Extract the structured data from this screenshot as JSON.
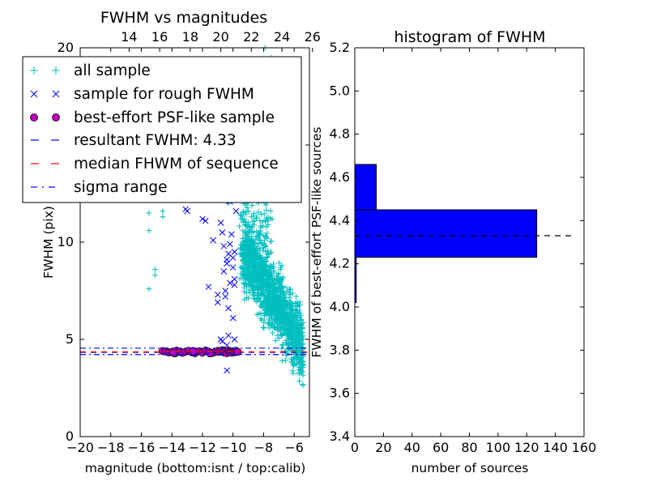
{
  "chart_data": [
    {
      "type": "scatter",
      "title": "FWHM vs magnitudes",
      "xlabel": "magnitude (bottom:isnt / top:calib)",
      "ylabel": "FWHM (pix)",
      "xlim": [
        -20,
        -5
      ],
      "ylim": [
        0,
        20
      ],
      "xticks": [
        -20,
        -18,
        -16,
        -14,
        -12,
        -10,
        -8,
        -6
      ],
      "xticklabels": [
        "−20",
        "−18",
        "−16",
        "−14",
        "−12",
        "−10",
        "−8",
        "−6"
      ],
      "yticks": [
        0,
        5,
        10,
        15,
        20
      ],
      "yticklabels": [
        "0",
        "5",
        "10",
        "15",
        "20"
      ],
      "top_axis": {
        "offset": 30.8,
        "ticks": [
          14,
          16,
          18,
          20,
          22,
          24,
          26
        ],
        "ticklabels": [
          "14",
          "16",
          "18",
          "20",
          "22",
          "24",
          "26"
        ]
      },
      "grid": false,
      "legend_position": "upper-left",
      "legend": [
        {
          "label": "all sample",
          "marker": "+",
          "color": "#00bfbf"
        },
        {
          "label": "sample for rough FWHM",
          "marker": "x",
          "color": "#0000ff"
        },
        {
          "label": "best-effort PSF-like sample",
          "marker": "o",
          "color": "#bf00bf"
        },
        {
          "label": "resultant FWHM: 4.33",
          "line": "dashed",
          "color": "#0000ff"
        },
        {
          "label": "median FHWM of sequence",
          "line": "dashed",
          "color": "#ff0000"
        },
        {
          "label": "sigma range",
          "line": "dashdot",
          "color": "#0000ff"
        }
      ],
      "series": [
        {
          "name": "all sample",
          "color": "#00bfbf",
          "values": [
            [
              -15.5,
              7.6
            ],
            [
              -15.5,
              10.6
            ],
            [
              -15.5,
              11.5
            ],
            [
              -15.1,
              8.3
            ],
            [
              -15.1,
              8.6
            ],
            [
              -14.6,
              11.3
            ],
            [
              -14.6,
              11.6
            ],
            [
              -13.6,
              12.3
            ],
            [
              -13.0,
              12.2
            ],
            [
              -11.0,
              12.6
            ],
            [
              -10.3,
              12.0
            ],
            [
              -9.7,
              12.8
            ],
            [
              -9.5,
              13.4
            ],
            [
              -9.0,
              14.2
            ],
            [
              -8.8,
              13.0
            ],
            [
              -8.5,
              13.6
            ],
            [
              -8.3,
              13.1
            ],
            [
              -7.6,
              12.8
            ],
            [
              -7.3,
              13.0
            ],
            [
              -7.0,
              13.4
            ],
            [
              -6.5,
              12.5
            ],
            [
              -6.2,
              12.3
            ],
            [
              -7.9,
              20.0
            ],
            [
              -7.5,
              19.5
            ],
            [
              -7.0,
              19.2
            ],
            [
              -8.5,
              15.5
            ],
            [
              -7.6,
              15.3
            ],
            [
              -7.2,
              15.6
            ],
            [
              -8.9,
              14.4
            ],
            [
              -7.4,
              14.8
            ]
          ]
        },
        {
          "name": "sample for rough FWHM",
          "color": "#0000ff",
          "values": [
            [
              -13.1,
              11.7
            ],
            [
              -13.0,
              11.6
            ],
            [
              -12.2,
              12.3
            ],
            [
              -12.0,
              11.2
            ],
            [
              -11.8,
              11.1
            ],
            [
              -11.6,
              7.7
            ],
            [
              -11.3,
              10.1
            ],
            [
              -11.1,
              12.5
            ],
            [
              -11.0,
              7.3
            ],
            [
              -11.0,
              6.9
            ],
            [
              -10.9,
              12.8
            ],
            [
              -10.7,
              10.5
            ],
            [
              -10.6,
              8.5
            ],
            [
              -10.5,
              7.5
            ],
            [
              -10.5,
              7.2
            ],
            [
              -10.4,
              9.1
            ],
            [
              -10.4,
              8.9
            ],
            [
              -10.3,
              9.4
            ],
            [
              -10.3,
              6.6
            ],
            [
              -10.2,
              12.1
            ],
            [
              -10.2,
              9.9
            ],
            [
              -10.2,
              7.9
            ],
            [
              -10.1,
              10.4
            ],
            [
              -10.0,
              9.2
            ],
            [
              -10.0,
              8.7
            ],
            [
              -10.0,
              6.1
            ],
            [
              -9.9,
              9.5
            ],
            [
              -9.9,
              12.9
            ],
            [
              -9.9,
              8.1
            ],
            [
              -9.8,
              11.6
            ],
            [
              -10.4,
              3.4
            ],
            [
              -10.3,
              5.2
            ],
            [
              -10.8,
              5.0
            ],
            [
              -10.7,
              4.9
            ],
            [
              -9.9,
              5.0
            ],
            [
              -9.9,
              7.8
            ],
            [
              -10.6,
              9.8
            ],
            [
              -10.8,
              11.0
            ],
            [
              -11.5,
              12.2
            ],
            [
              -10.4,
              4.7
            ]
          ]
        },
        {
          "name": "best-effort PSF-like sample",
          "color": "#bf00bf",
          "values": [
            [
              -14.6,
              4.4
            ],
            [
              -14.4,
              4.38
            ],
            [
              -14.2,
              4.33
            ],
            [
              -14.0,
              4.36
            ],
            [
              -13.8,
              4.28
            ],
            [
              -13.7,
              4.42
            ],
            [
              -13.5,
              4.35
            ],
            [
              -13.3,
              4.31
            ],
            [
              -13.1,
              4.37
            ],
            [
              -12.9,
              4.41
            ],
            [
              -12.7,
              4.34
            ],
            [
              -12.5,
              4.29
            ],
            [
              -12.4,
              4.36
            ],
            [
              -12.2,
              4.39
            ],
            [
              -12.0,
              4.32
            ],
            [
              -11.8,
              4.42
            ],
            [
              -11.6,
              4.37
            ],
            [
              -11.4,
              4.3
            ],
            [
              -11.2,
              4.34
            ],
            [
              -11.0,
              4.41
            ],
            [
              -10.9,
              4.36
            ],
            [
              -10.7,
              4.44
            ],
            [
              -10.6,
              4.33
            ],
            [
              -10.5,
              4.38
            ],
            [
              -10.4,
              4.29
            ],
            [
              -10.3,
              4.42
            ],
            [
              -10.2,
              4.35
            ],
            [
              -10.1,
              4.32
            ],
            [
              -10.0,
              4.39
            ],
            [
              -9.9,
              4.34
            ],
            [
              -9.8,
              4.41
            ],
            [
              -9.7,
              4.36
            ],
            [
              -13.9,
              4.31
            ],
            [
              -12.6,
              4.4
            ],
            [
              -11.5,
              4.28
            ]
          ]
        }
      ],
      "reference_lines": [
        {
          "name": "resultant FWHM",
          "y": 4.33,
          "color": "#0000ff",
          "style": "dashed"
        },
        {
          "name": "median FHWM of sequence",
          "y": 4.36,
          "color": "#ff0000",
          "style": "dashed"
        },
        {
          "name": "sigma upper",
          "y": 4.55,
          "color": "#0000ff",
          "style": "dashdot"
        },
        {
          "name": "sigma lower",
          "y": 4.22,
          "color": "#0000ff",
          "style": "dashdot"
        }
      ]
    },
    {
      "type": "bar",
      "orientation": "horizontal",
      "title": "histogram of FWHM",
      "xlabel": "number of sources",
      "ylabel": "FWHM of best-effort PSF-like sources",
      "xlim": [
        0,
        160
      ],
      "ylim": [
        3.4,
        5.2
      ],
      "xticks": [
        0,
        20,
        40,
        60,
        80,
        100,
        120,
        140,
        160
      ],
      "xticklabels": [
        "0",
        "20",
        "40",
        "60",
        "80",
        "100",
        "120",
        "140",
        "160"
      ],
      "yticks": [
        3.4,
        3.6,
        3.8,
        4.0,
        4.2,
        4.4,
        4.6,
        4.8,
        5.0,
        5.2
      ],
      "yticklabels": [
        "3.4",
        "3.6",
        "3.8",
        "4.0",
        "4.2",
        "4.4",
        "4.6",
        "4.8",
        "5.0",
        "5.2"
      ],
      "grid": false,
      "bar_color": "#0000ff",
      "bins": [
        {
          "low": 4.02,
          "high": 4.23,
          "count": 1
        },
        {
          "low": 4.23,
          "high": 4.45,
          "count": 127
        },
        {
          "low": 4.45,
          "high": 4.66,
          "count": 15
        },
        {
          "low": 4.66,
          "high": 4.87,
          "count": 0
        },
        {
          "low": 4.87,
          "high": 5.08,
          "count": 0
        }
      ],
      "reference_line": {
        "y": 4.33,
        "x_range": [
          0,
          154
        ],
        "color": "#000000",
        "style": "dashed"
      }
    }
  ]
}
